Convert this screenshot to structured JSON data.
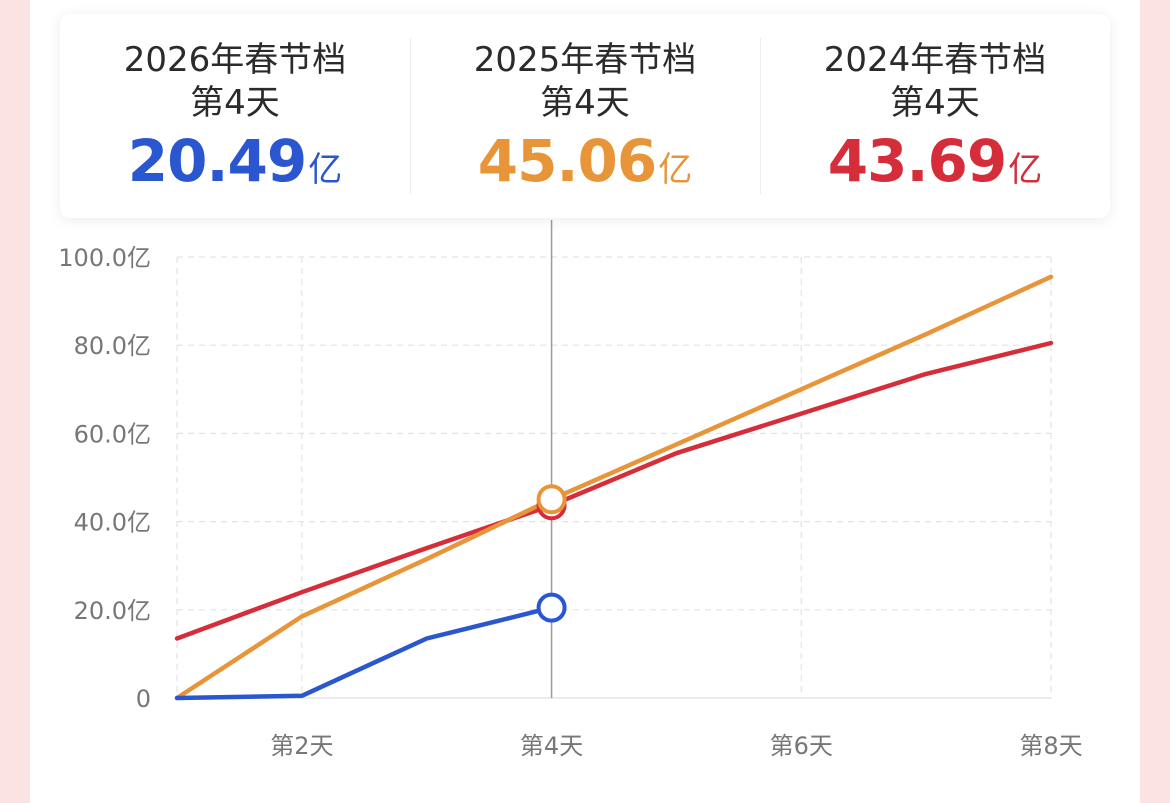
{
  "summary": [
    {
      "title": "2026年春节档",
      "day": "第4天",
      "value": "20.49",
      "unit": "亿",
      "color": "#2a57d0"
    },
    {
      "title": "2025年春节档",
      "day": "第4天",
      "value": "45.06",
      "unit": "亿",
      "color": "#e8953a"
    },
    {
      "title": "2024年春节档",
      "day": "第4天",
      "value": "43.69",
      "unit": "亿",
      "color": "#d52d3a"
    }
  ],
  "chart_data": {
    "type": "line",
    "x": [
      1,
      2,
      3,
      4,
      5,
      6,
      7,
      8
    ],
    "xticks": [
      {
        "x": 2,
        "label": "第2天"
      },
      {
        "x": 4,
        "label": "第4天"
      },
      {
        "x": 6,
        "label": "第6天"
      },
      {
        "x": 8,
        "label": "第8天"
      }
    ],
    "yticks": [
      {
        "y": 0,
        "label": "0"
      },
      {
        "y": 20,
        "label": "20.0亿"
      },
      {
        "y": 40,
        "label": "40.0亿"
      },
      {
        "y": 60,
        "label": "60.0亿"
      },
      {
        "y": 80,
        "label": "80.0亿"
      },
      {
        "y": 100,
        "label": "100.0亿"
      }
    ],
    "xlim": [
      1,
      8
    ],
    "ylim": [
      0,
      100
    ],
    "grid": true,
    "highlight_x": 4,
    "series": [
      {
        "color": "#d52d3a",
        "x": [
          1,
          2,
          3,
          4,
          5,
          6,
          7,
          8
        ],
        "values": [
          13.5,
          24,
          34,
          43.69,
          55.5,
          64.5,
          73.5,
          80.5
        ]
      },
      {
        "color": "#e8953a",
        "x": [
          1,
          2,
          3,
          4,
          5,
          6,
          7,
          8
        ],
        "values": [
          0,
          18.5,
          31.5,
          45.06,
          57.5,
          70,
          82.5,
          95.5
        ]
      },
      {
        "color": "#2a57d0",
        "x": [
          1,
          2,
          3,
          4
        ],
        "values": [
          0,
          0.5,
          13.5,
          20.49
        ]
      }
    ]
  }
}
